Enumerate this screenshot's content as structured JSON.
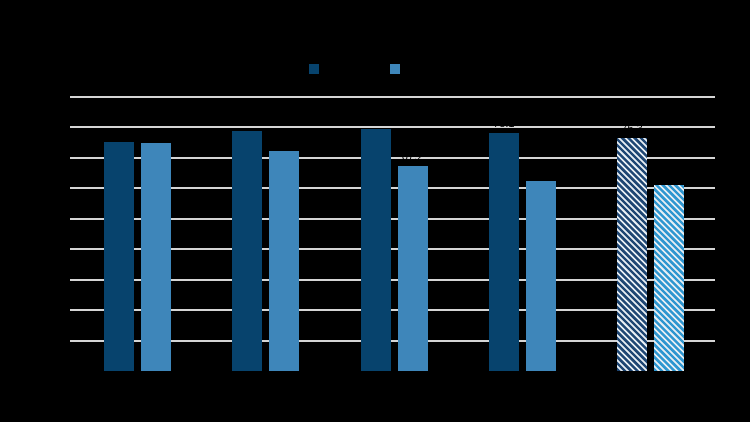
{
  "chart": {
    "background_color": "#000000",
    "gridline_color": "#d5d5d5",
    "legend": {
      "position": "top-center",
      "swatches": [
        {
          "name": "series-1-swatch",
          "color": "#07436d",
          "hatched": false
        },
        {
          "name": "series-2-swatch",
          "color": "#3e86ba",
          "hatched": false
        }
      ]
    }
  },
  "chart_data": {
    "type": "bar",
    "title": "",
    "categories": [
      "",
      "",
      "",
      "",
      ""
    ],
    "series": [
      {
        "name": "dark-blue-series",
        "color": "#07436d",
        "values": [
          75.2,
          78.7,
          79.2,
          78.1,
          76.3
        ]
      },
      {
        "name": "light-blue-series",
        "color": "#3e86ba",
        "values": [
          74.7,
          72.1,
          67.2,
          62.3,
          61.0
        ]
      }
    ],
    "hatched_group_index": 4,
    "hatched_series_base_colors": [
      "#1e4673",
      "#2e96d0"
    ],
    "hatch_stripe_color": "#e8eef3",
    "ylim": [
      0,
      90
    ],
    "gridline_step": 10,
    "grid": true,
    "legend_position": "top",
    "value_label_decimals": 1
  }
}
